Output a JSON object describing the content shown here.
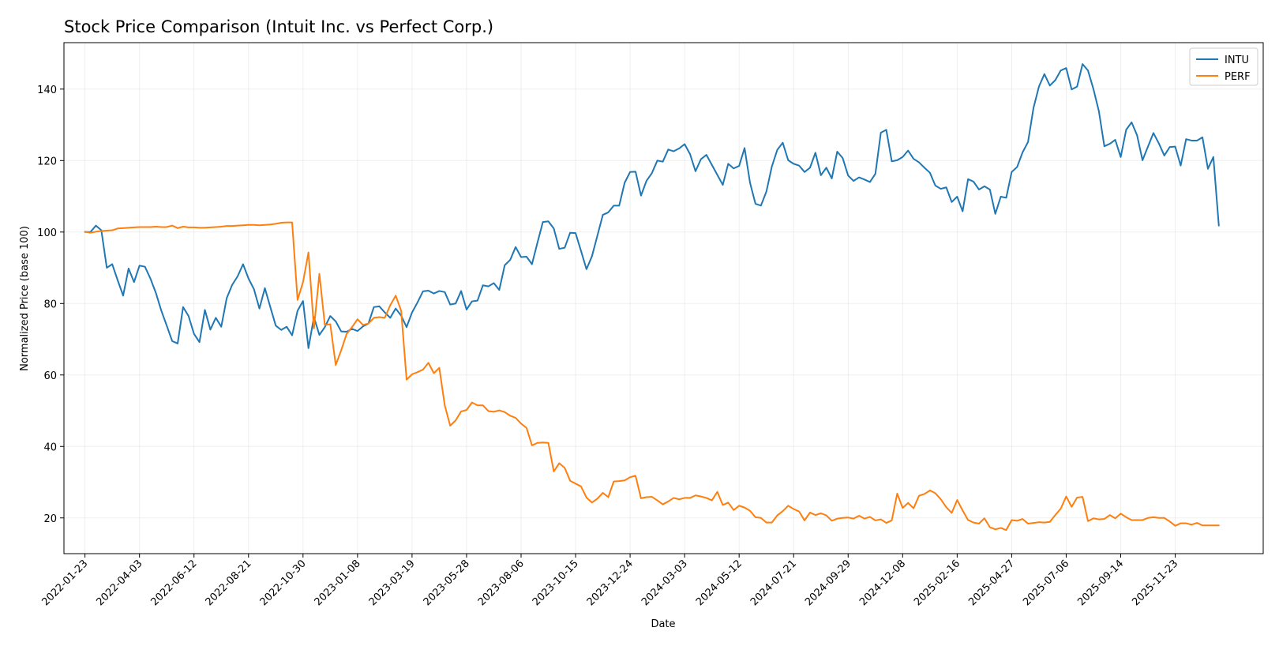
{
  "chart_data": {
    "type": "line",
    "title": "Stock Price Comparison (Intuit Inc. vs Perfect Corp.)",
    "xlabel": "Date",
    "ylabel": "Normalized Price (base 100)",
    "x_range": [
      "2021-12-27",
      "2026-03-16"
    ],
    "ylim": [
      10,
      153
    ],
    "yticks": [
      20,
      40,
      60,
      80,
      100,
      120,
      140
    ],
    "xticks": [
      "2022-01-23",
      "2022-04-03",
      "2022-06-12",
      "2022-08-21",
      "2022-10-30",
      "2023-01-08",
      "2023-03-19",
      "2023-05-28",
      "2023-08-06",
      "2023-10-15",
      "2023-12-24",
      "2024-03-03",
      "2024-05-12",
      "2024-07-21",
      "2024-09-29",
      "2024-12-08",
      "2025-02-16",
      "2025-04-27",
      "2025-07-06",
      "2025-09-14",
      "2025-11-23"
    ],
    "grid": true,
    "legend": "top-right",
    "series": [
      {
        "name": "INTU",
        "color": "#1f77b4",
        "start": "2022-01-23",
        "step_days": 7,
        "values": [
          100,
          100,
          101.8,
          100.5,
          90,
          91,
          86.5,
          82.2,
          89.8,
          86,
          90.6,
          90.3,
          87,
          83,
          78,
          73.8,
          69.5,
          68.8,
          79,
          76.5,
          71.5,
          69.2,
          78.2,
          72.7,
          76,
          73.5,
          81.5,
          85.2,
          87.6,
          91,
          87,
          84,
          78.6,
          84.3,
          79,
          73.8,
          72.6,
          73.5,
          71.1,
          78,
          80.7,
          67.5,
          76.2,
          71.2,
          73.4,
          76.5,
          75,
          72.2,
          72.1,
          72.9,
          72.3,
          73.6,
          74.4,
          79,
          79.2,
          77.5,
          76,
          78.6,
          76.6,
          73.4,
          77.5,
          80.3,
          83.4,
          83.6,
          82.8,
          83.5,
          83.2,
          79.7,
          80,
          83.5,
          78.3,
          80.6,
          80.8,
          85.1,
          84.8,
          85.7,
          83.8,
          90.7,
          92.2,
          95.8,
          93,
          93.1,
          91,
          97,
          102.8,
          103,
          101,
          95.3,
          95.6,
          99.8,
          99.7,
          94.7,
          89.6,
          93.2,
          99,
          104.8,
          105.5,
          107.4,
          107.4,
          113.8,
          116.8,
          116.9,
          110.2,
          114.3,
          116.5,
          120,
          119.7,
          123.1,
          122.6,
          123.4,
          124.6,
          121.8,
          117,
          120.4,
          121.6,
          118.8,
          116,
          113.2,
          119.1,
          117.8,
          118.5,
          123.5,
          113.8,
          107.9,
          107.4,
          111.3,
          118.3,
          123,
          125,
          120.1,
          119.1,
          118.6,
          116.8,
          118,
          122.2,
          115.9,
          118,
          115,
          122.5,
          120.7,
          115.8,
          114.3,
          115.3,
          114.7,
          114,
          116.3,
          127.8,
          128.6,
          119.8,
          120.1,
          121,
          122.8,
          120.5,
          119.5,
          118,
          116.6,
          113,
          112.1,
          112.5,
          108.4,
          109.9,
          105.8,
          114.8,
          114.1,
          111.9,
          112.8,
          111.9,
          105.1,
          109.9,
          109.6,
          116.8,
          118.2,
          122.3,
          125.2,
          134.7,
          140.7,
          144.2,
          141,
          142.5,
          145.2,
          145.9,
          139.9,
          140.7,
          147,
          145.2,
          140,
          133.8,
          124,
          124.7,
          125.8,
          121,
          128.6,
          130.7,
          127.1,
          120.1,
          123.9,
          127.7,
          124.8,
          121.4,
          123.8,
          123.9,
          118.6,
          126,
          125.6,
          125.6,
          126.5,
          117.7,
          121,
          101.8
        ]
      },
      {
        "name": "PERF",
        "color": "#ff7f0e",
        "start": "2022-01-23",
        "step_days": 7,
        "values": [
          100.1,
          99.8,
          100.1,
          100.3,
          100.4,
          100.5,
          101,
          101.1,
          101.2,
          101.3,
          101.4,
          101.4,
          101.4,
          101.5,
          101.4,
          101.4,
          101.8,
          101.1,
          101.5,
          101.3,
          101.3,
          101.2,
          101.2,
          101.3,
          101.4,
          101.5,
          101.7,
          101.7,
          101.8,
          101.9,
          102,
          102,
          101.9,
          102,
          102.1,
          102.3,
          102.6,
          102.7,
          102.7,
          81,
          86,
          94.3,
          73,
          88.3,
          74,
          74.2,
          62.8,
          66.9,
          71.5,
          73.4,
          75.6,
          74,
          74.4,
          76,
          76.2,
          76,
          79.5,
          82.2,
          78,
          58.7,
          60.2,
          60.8,
          61.5,
          63.4,
          60.5,
          62,
          51.5,
          45.8,
          47.3,
          49.8,
          50.2,
          52.3,
          51.5,
          51.5,
          49.9,
          49.7,
          50.1,
          49.6,
          48.6,
          48,
          46.4,
          45.2,
          40.3,
          41,
          41.1,
          41,
          33,
          35.3,
          34,
          30.4,
          29.6,
          28.8,
          25.7,
          24.3,
          25.4,
          27,
          25.8,
          30.2,
          30.3,
          30.5,
          31.4,
          31.8,
          25.5,
          25.8,
          25.9,
          24.9,
          23.8,
          24.6,
          25.6,
          25.2,
          25.6,
          25.6,
          26.3,
          26,
          25.6,
          24.9,
          27.3,
          23.6,
          24.3,
          22.2,
          23.4,
          22.9,
          22,
          20.2,
          20,
          18.7,
          18.7,
          20.7,
          21.9,
          23.4,
          22.5,
          21.8,
          19.3,
          21.5,
          20.8,
          21.3,
          20.7,
          19.2,
          19.8,
          20,
          20.1,
          19.8,
          20.6,
          19.8,
          20.3,
          19.3,
          19.6,
          18.6,
          19.3,
          26.8,
          22.8,
          24.2,
          22.7,
          26.2,
          26.7,
          27.7,
          26.9,
          25.2,
          23,
          21.4,
          25,
          22.1,
          19.4,
          18.7,
          18.4,
          19.9,
          17.4,
          16.8,
          17.2,
          16.6,
          19.4,
          19.2,
          19.7,
          18.4,
          18.6,
          18.8,
          18.7,
          18.9,
          20.8,
          22.6,
          26,
          23.1,
          25.7,
          25.9,
          19.1,
          19.9,
          19.6,
          19.7,
          20.8,
          19.9,
          21.2,
          20.2,
          19.4,
          19.4,
          19.4,
          20,
          20.2,
          20,
          20,
          19,
          17.8,
          18.5,
          18.5,
          18.1,
          18.6,
          17.9,
          17.9,
          17.9,
          17.9
        ]
      }
    ]
  }
}
